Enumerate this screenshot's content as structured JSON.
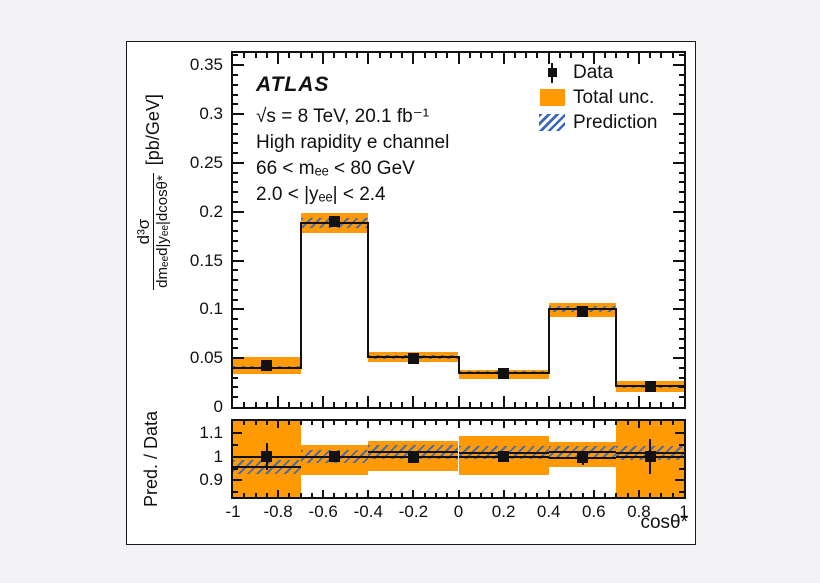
{
  "annotations": {
    "experiment": "ATLAS",
    "energy_lumi": "√s = 8 TeV, 20.1 fb⁻¹",
    "channel": "High rapidity e channel",
    "mass_range": "66 < mₑₑ < 80 GeV",
    "rapidity_range": "2.0 < |yₑₑ| < 2.4"
  },
  "legend": {
    "items": [
      {
        "label": "Data",
        "marker": "black-square-with-error-bar"
      },
      {
        "label": "Total unc.",
        "marker": "orange-box"
      },
      {
        "label": "Prediction",
        "marker": "blue-hatched-box"
      }
    ]
  },
  "chart_data": {
    "type": "bar",
    "subtype": "histogram-with-ratio-panel",
    "title": "",
    "xlabel": "cosθ*",
    "xlim": [
      -1,
      1
    ],
    "xtick_labels": [
      "-1",
      "-0.8",
      "-0.6",
      "-0.4",
      "-0.2",
      "0",
      "0.2",
      "0.4",
      "0.6",
      "0.8",
      "1"
    ],
    "bin_edges": [
      -1.0,
      -0.7,
      -0.4,
      0.0,
      0.4,
      0.7,
      1.0
    ],
    "bin_centers": [
      -0.85,
      -0.55,
      -0.2,
      0.2,
      0.55,
      0.85
    ],
    "grid": false,
    "legend_position": "top-right",
    "main_panel": {
      "ylabel_numerator": "d³σ",
      "ylabel_denominator": "dmₑₑd|yₑₑ|dcosθ*",
      "ylabel_units": "[pb/GeV]",
      "ylim": [
        0,
        0.3625
      ],
      "ytick_labels": [
        "0",
        "0.05",
        "0.1",
        "0.15",
        "0.2",
        "0.25",
        "0.3",
        "0.35"
      ],
      "data_values": [
        0.042,
        0.19,
        0.05,
        0.034,
        0.098,
        0.021
      ],
      "data_errors": [
        0.002,
        0.003,
        0.002,
        0.002,
        0.002,
        0.002
      ],
      "prediction_values": [
        0.04,
        0.188,
        0.051,
        0.035,
        0.1,
        0.021
      ],
      "prediction_band_lo": [
        0.0385,
        0.183,
        0.0493,
        0.0333,
        0.097,
        0.0195
      ],
      "prediction_band_hi": [
        0.042,
        0.1935,
        0.0528,
        0.0365,
        0.103,
        0.0228
      ],
      "total_unc_lo": [
        0.034,
        0.178,
        0.046,
        0.029,
        0.092,
        0.015
      ],
      "total_unc_hi": [
        0.051,
        0.199,
        0.056,
        0.038,
        0.107,
        0.027
      ]
    },
    "ratio_panel": {
      "ylabel": "Pred. / Data",
      "ylim": [
        0.83,
        1.15
      ],
      "ytick_labels": [
        "0.9",
        "1",
        "1.1"
      ],
      "pred_over_data": [
        0.957,
        1.0,
        1.02,
        1.016,
        1.02,
        1.015
      ],
      "pred_band_half_width": [
        0.03,
        0.026,
        0.028,
        0.028,
        0.026,
        0.028
      ],
      "total_unc_lo": [
        0.8,
        0.922,
        0.941,
        0.922,
        0.957,
        0.8
      ],
      "total_unc_hi": [
        1.18,
        1.047,
        1.067,
        1.086,
        1.06,
        1.18
      ],
      "data_values": [
        1.0,
        1.0,
        0.998,
        1.0,
        0.995,
        1.0
      ],
      "data_errors": [
        0.058,
        0.018,
        0.022,
        0.022,
        0.03,
        0.075
      ]
    },
    "colors": {
      "total_unc": "#ff9a05",
      "prediction_hatch": "#3767be",
      "line": "#111111",
      "data_marker": "#111111"
    }
  }
}
